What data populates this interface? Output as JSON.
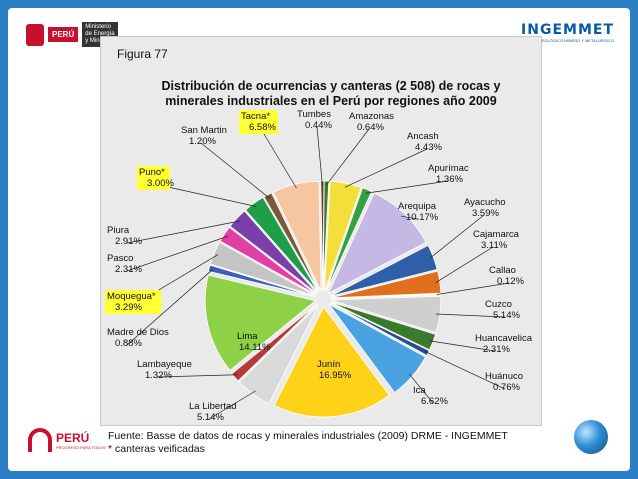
{
  "header": {
    "left_logo": {
      "badge": "PERÚ",
      "ministry": "Ministerio de Energía y Minas"
    },
    "right_logo": {
      "name": "INGEMMET",
      "subtitle": "INSTITUTO GEOLÓGICO MINERO Y METALÚRGICO"
    }
  },
  "figure": {
    "label": "Figura 77",
    "title_line1": "Distribución de ocurrencias y canteras (2 508) de rocas y",
    "title_line2": "minerales industriales en el Perú por regiones año 2009"
  },
  "chart_data": {
    "type": "pie",
    "title": "Distribución de ocurrencias y canteras (2 508) de rocas y minerales industriales en el Perú por regiones año 2009",
    "total": 2508,
    "slices": [
      {
        "name": "Tumbes",
        "pct_label": "0.44%",
        "value": 0.44,
        "color": "#6a3b2c",
        "highlight": false
      },
      {
        "name": "Amazonas",
        "pct_label": "0.64%",
        "value": 0.64,
        "color": "#3f7a24",
        "highlight": false
      },
      {
        "name": "Ancash",
        "pct_label": "4.43%",
        "value": 4.43,
        "color": "#f2df3a",
        "highlight": false
      },
      {
        "name": "Apurímac",
        "pct_label": "1.36%",
        "value": 1.36,
        "color": "#35a042",
        "highlight": false
      },
      {
        "name": "Arequipa",
        "pct_label": "10.17%",
        "value": 10.17,
        "color": "#c6b8e4",
        "highlight": false
      },
      {
        "name": "Ayacucho",
        "pct_label": "3.59%",
        "value": 3.59,
        "color": "#2f5fa8",
        "highlight": false
      },
      {
        "name": "Cajamarca",
        "pct_label": "3.11%",
        "value": 3.11,
        "color": "#e0701d",
        "highlight": false
      },
      {
        "name": "Callao",
        "pct_label": "0.12%",
        "value": 0.12,
        "color": "#8a8a8a",
        "highlight": false
      },
      {
        "name": "Cuzco",
        "pct_label": "5.14%",
        "value": 5.14,
        "color": "#cfcfcf",
        "highlight": false
      },
      {
        "name": "Huancavelica",
        "pct_label": "2.31%",
        "value": 2.31,
        "color": "#3a7a2a",
        "highlight": false
      },
      {
        "name": "Huánuco",
        "pct_label": "0.76%",
        "value": 0.76,
        "color": "#2a4e8c",
        "highlight": false
      },
      {
        "name": "Ica",
        "pct_label": "6.62%",
        "value": 6.62,
        "color": "#4aa3e0",
        "highlight": false
      },
      {
        "name": "Junín",
        "pct_label": "16.95%",
        "value": 16.95,
        "color": "#ffd21a",
        "highlight": false
      },
      {
        "name": "La Libertad",
        "pct_label": "5.14%",
        "value": 5.14,
        "color": "#d9d9d9",
        "highlight": false
      },
      {
        "name": "Lambayeque",
        "pct_label": "1.32%",
        "value": 1.32,
        "color": "#b43a3a",
        "highlight": false
      },
      {
        "name": "Lima",
        "pct_label": "14.11%",
        "value": 14.11,
        "color": "#8ed146",
        "highlight": false
      },
      {
        "name": "Madre de Dios",
        "pct_label": "0.88%",
        "value": 0.88,
        "color": "#3a5ec0",
        "highlight": false
      },
      {
        "name": "Moquegua*",
        "pct_label": "3.29%",
        "value": 3.29,
        "color": "#c4c4c4",
        "highlight": true
      },
      {
        "name": "Pasco",
        "pct_label": "2.31%",
        "value": 2.31,
        "color": "#e23fa6",
        "highlight": false
      },
      {
        "name": "Piura",
        "pct_label": "2.91%",
        "value": 2.91,
        "color": "#7a3fa8",
        "highlight": false
      },
      {
        "name": "Puno*",
        "pct_label": "3.00%",
        "value": 3.0,
        "color": "#1f9e4a",
        "highlight": true
      },
      {
        "name": "San Martin",
        "pct_label": "1.20%",
        "value": 1.2,
        "color": "#7a5a3a",
        "highlight": false
      },
      {
        "name": "Tacna*",
        "pct_label": "6.58%",
        "value": 6.58,
        "color": "#f5c6a0",
        "highlight": true
      }
    ]
  },
  "footer": {
    "source": "Fuente: Basse de datos de rocas y minerales industriales (2009) DRME - INGEMMET",
    "note": "* canteras veificadas",
    "brand": "PERÚ",
    "brand_sub": "PROGRESO PARA TODOS"
  }
}
